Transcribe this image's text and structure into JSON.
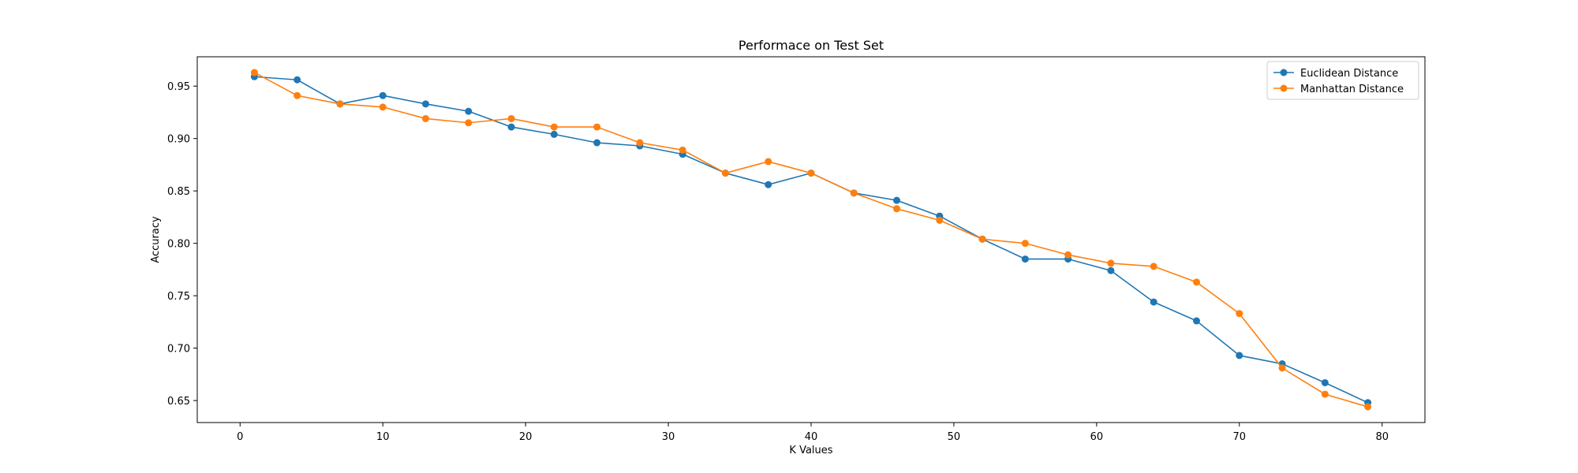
{
  "chart_data": {
    "type": "line",
    "title": "Performace on Test Set",
    "xlabel": "K Values",
    "ylabel": "Accuracy",
    "xlim": [
      -3,
      83
    ],
    "ylim": [
      0.629,
      0.978
    ],
    "xticks": [
      0,
      10,
      20,
      30,
      40,
      50,
      60,
      70,
      80
    ],
    "yticks": [
      0.65,
      0.7,
      0.75,
      0.8,
      0.85,
      0.9,
      0.95
    ],
    "ytick_labels": [
      "0.65",
      "0.70",
      "0.75",
      "0.80",
      "0.85",
      "0.90",
      "0.95"
    ],
    "grid": false,
    "legend_position": "top-right",
    "x": [
      1,
      4,
      7,
      10,
      13,
      16,
      19,
      22,
      25,
      28,
      31,
      34,
      37,
      40,
      43,
      46,
      49,
      52,
      55,
      58,
      61,
      64,
      67,
      70,
      73,
      76,
      79
    ],
    "series": [
      {
        "name": "Euclidean Distance",
        "color": "#1f77b4",
        "values": [
          0.959,
          0.956,
          0.933,
          0.941,
          0.933,
          0.926,
          0.911,
          0.904,
          0.896,
          0.893,
          0.885,
          0.867,
          0.856,
          0.867,
          0.848,
          0.841,
          0.826,
          0.804,
          0.785,
          0.785,
          0.774,
          0.744,
          0.726,
          0.693,
          0.685,
          0.667,
          0.648
        ]
      },
      {
        "name": "Manhattan Distance",
        "color": "#ff7f0e",
        "values": [
          0.963,
          0.941,
          0.933,
          0.93,
          0.919,
          0.915,
          0.919,
          0.911,
          0.911,
          0.896,
          0.889,
          0.867,
          0.878,
          0.867,
          0.848,
          0.833,
          0.822,
          0.804,
          0.8,
          0.789,
          0.781,
          0.778,
          0.763,
          0.733,
          0.681,
          0.656,
          0.644
        ]
      }
    ]
  }
}
